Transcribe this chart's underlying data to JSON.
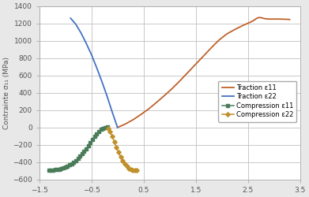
{
  "title": "",
  "ylabel": "Contrainte σ₁₁ (MPa)",
  "xlabel": "",
  "xlim": [
    -1.5,
    3.5
  ],
  "ylim": [
    -600,
    1400
  ],
  "yticks": [
    -600,
    -400,
    -200,
    0,
    200,
    400,
    600,
    800,
    1000,
    1200,
    1400
  ],
  "xticks": [
    -1.5,
    -0.5,
    0.5,
    1.5,
    2.5,
    3.5
  ],
  "plot_bg_color": "#ffffff",
  "fig_bg_color": "#e8e8e8",
  "traction_e11_color": "#c0622a",
  "traction_e22_color": "#4472c4",
  "comp_e11_color": "#4a7c59",
  "comp_e22_color": "#c0902a",
  "grid_color": "#c0c0c0",
  "legend_labels": [
    "Traction ε11",
    "Traction ε22",
    "Compression ε11",
    "Compression ε22"
  ],
  "traction_e11_x": [
    0.0,
    0.15,
    0.3,
    0.45,
    0.6,
    0.75,
    0.9,
    1.05,
    1.2,
    1.35,
    1.5,
    1.65,
    1.8,
    1.95,
    2.1,
    2.25,
    2.4,
    2.55,
    2.6,
    2.65,
    2.68,
    2.72,
    2.76,
    2.8,
    2.85,
    2.9,
    2.95,
    3.0,
    3.05,
    3.1,
    3.15,
    3.2,
    3.25,
    3.3
  ],
  "traction_e11_y": [
    0,
    40,
    90,
    150,
    215,
    290,
    368,
    450,
    540,
    635,
    730,
    825,
    920,
    1010,
    1080,
    1130,
    1175,
    1215,
    1230,
    1250,
    1262,
    1268,
    1265,
    1258,
    1252,
    1250,
    1250,
    1250,
    1250,
    1250,
    1249,
    1248,
    1247,
    1245
  ],
  "traction_e22_x": [
    -0.9,
    -0.8,
    -0.7,
    -0.6,
    -0.5,
    -0.4,
    -0.3,
    -0.2,
    -0.1,
    0.0
  ],
  "traction_e22_y": [
    1260,
    1190,
    1090,
    970,
    840,
    690,
    530,
    360,
    175,
    0
  ],
  "comp_e11_x": [
    -1.32,
    -1.28,
    -1.24,
    -1.2,
    -1.16,
    -1.12,
    -1.08,
    -1.04,
    -1.0,
    -0.96,
    -0.92,
    -0.88,
    -0.84,
    -0.8,
    -0.76,
    -0.72,
    -0.68,
    -0.64,
    -0.6,
    -0.56,
    -0.52,
    -0.48,
    -0.44,
    -0.4,
    -0.36,
    -0.32,
    -0.28,
    -0.24,
    -0.2
  ],
  "comp_e11_y": [
    -492,
    -492,
    -490,
    -488,
    -485,
    -480,
    -474,
    -466,
    -457,
    -446,
    -433,
    -418,
    -400,
    -380,
    -358,
    -332,
    -305,
    -275,
    -243,
    -210,
    -175,
    -140,
    -105,
    -72,
    -45,
    -22,
    -8,
    0,
    10
  ],
  "comp_e22_x": [
    -0.18,
    -0.14,
    -0.1,
    -0.06,
    -0.02,
    0.02,
    0.06,
    0.1,
    0.14,
    0.18,
    0.22,
    0.26,
    0.3,
    0.34,
    0.37
  ],
  "comp_e22_y": [
    -8,
    -50,
    -105,
    -165,
    -225,
    -288,
    -340,
    -385,
    -420,
    -450,
    -472,
    -485,
    -492,
    -496,
    -497
  ]
}
